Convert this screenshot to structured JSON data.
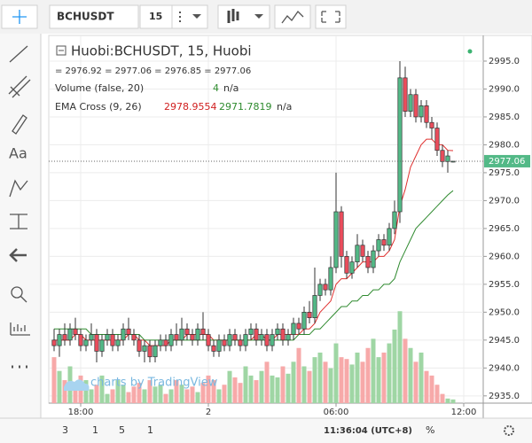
{
  "toolbar": {
    "symbol": "BCHUSDT",
    "interval": "15"
  },
  "left_toolbar": {
    "text_tool": "Aa"
  },
  "legend": {
    "title": "Huobi:BCHUSDT, 15, Huobi",
    "ohlc": "= 2976.92 = 2977.06 = 2976.85 = 2977.06",
    "volume_name": "Volume (false, 20)",
    "volume_na": "n/a",
    "ema_name": "EMA Cross (9, 26)",
    "ema_na": "n/a"
  },
  "watermark": "charts by TradingView",
  "bottom_bar": {
    "ranges": [
      "3",
      "1",
      "5",
      "1"
    ],
    "clock": "11:36:04 (UTC+8)",
    "percent": "%"
  },
  "chart_data": {
    "type": "candlestick",
    "current_price": {
      "value": 2977.06,
      "label": "2977.06"
    },
    "ylim": [
      2933.7,
      2999.6
    ],
    "yticks": [
      {
        "value": 2935,
        "label": "2935.0"
      },
      {
        "value": 2940,
        "label": "2940.0"
      },
      {
        "value": 2945,
        "label": "2945.0"
      },
      {
        "value": 2950,
        "label": "2950.0"
      },
      {
        "value": 2955,
        "label": "2955.0"
      },
      {
        "value": 2960,
        "label": "2960.0"
      },
      {
        "value": 2965,
        "label": "2965.0"
      },
      {
        "value": 2970,
        "label": "2970.0"
      },
      {
        "value": 2975,
        "label": "2975.0"
      },
      {
        "value": 2980,
        "label": "2980.0"
      },
      {
        "value": 2985,
        "label": "2985.0"
      },
      {
        "value": 2990,
        "label": "2990.0"
      },
      {
        "value": 2995,
        "label": "2995.0"
      }
    ],
    "xticks": [
      {
        "value": 5,
        "label": "18:00"
      },
      {
        "value": 29,
        "label": "2"
      },
      {
        "value": 53,
        "label": "06:00"
      },
      {
        "value": 77,
        "label": "12:00"
      }
    ],
    "grid": true,
    "up_color": "#53b987",
    "down_color": "#eb4d5c",
    "open": [
      2945,
      2944,
      2946,
      2945,
      2947,
      2946,
      2944,
      2945,
      2946,
      2943,
      2945,
      2946,
      2944,
      2945,
      2947,
      2946,
      2945,
      2943,
      2944,
      2942,
      2944,
      2945,
      2944,
      2946,
      2945,
      2947,
      2946,
      2945,
      2947,
      2946,
      2944,
      2943,
      2945,
      2944,
      2946,
      2945,
      2944,
      2946,
      2947,
      2945,
      2946,
      2944,
      2946,
      2947,
      2945,
      2946,
      2948,
      2947,
      2950,
      2949,
      2953,
      2955,
      2954,
      2958,
      2968,
      2960,
      2957,
      2959,
      2962,
      2960,
      2958,
      2961,
      2963,
      2962,
      2965,
      2968,
      2992,
      2986,
      2989,
      2985,
      2987,
      2984,
      2983,
      2979,
      2977,
      2976.92
    ],
    "high": [
      2947,
      2947,
      2948,
      2948,
      2949,
      2947,
      2946,
      2948,
      2947,
      2946,
      2947,
      2947,
      2946,
      2948,
      2949,
      2947,
      2946,
      2945,
      2945,
      2945,
      2946,
      2946,
      2947,
      2948,
      2949,
      2948,
      2947,
      2948,
      2950,
      2947,
      2945,
      2946,
      2946,
      2947,
      2947,
      2946,
      2947,
      2948,
      2948,
      2947,
      2947,
      2947,
      2948,
      2948,
      2947,
      2949,
      2949,
      2951,
      2952,
      2958,
      2956,
      2956,
      2960,
      2975,
      2969,
      2961,
      2960,
      2964,
      2963,
      2961,
      2962,
      2964,
      2964,
      2966,
      2970,
      2995,
      2994,
      2990,
      2990,
      2988,
      2988,
      2985,
      2984,
      2980,
      2979,
      2977.06
    ],
    "low": [
      2943,
      2942,
      2944,
      2944,
      2945,
      2943,
      2943,
      2944,
      2941,
      2942,
      2944,
      2943,
      2943,
      2944,
      2945,
      2944,
      2942,
      2941,
      2941,
      2941,
      2943,
      2943,
      2943,
      2944,
      2944,
      2945,
      2944,
      2944,
      2945,
      2943,
      2942,
      2942,
      2943,
      2943,
      2944,
      2943,
      2943,
      2945,
      2944,
      2944,
      2943,
      2943,
      2945,
      2944,
      2944,
      2945,
      2946,
      2946,
      2948,
      2948,
      2952,
      2953,
      2953,
      2957,
      2958,
      2956,
      2956,
      2958,
      2959,
      2957,
      2957,
      2960,
      2961,
      2961,
      2964,
      2966,
      2985,
      2985,
      2984,
      2984,
      2983,
      2981,
      2978,
      2976,
      2975,
      2976.85
    ],
    "close": [
      2944,
      2946,
      2945,
      2947,
      2946,
      2944,
      2945,
      2946,
      2943,
      2945,
      2946,
      2944,
      2945,
      2947,
      2946,
      2945,
      2943,
      2944,
      2942,
      2944,
      2945,
      2944,
      2946,
      2945,
      2947,
      2946,
      2945,
      2947,
      2946,
      2944,
      2943,
      2945,
      2944,
      2946,
      2945,
      2944,
      2946,
      2947,
      2945,
      2946,
      2944,
      2946,
      2947,
      2945,
      2946,
      2948,
      2947,
      2950,
      2949,
      2953,
      2955,
      2954,
      2958,
      2968,
      2960,
      2957,
      2959,
      2962,
      2960,
      2958,
      2961,
      2963,
      2962,
      2965,
      2968,
      2992,
      2986,
      2989,
      2985,
      2987,
      2984,
      2983,
      2979,
      2977,
      2978,
      2977.06
    ],
    "volume": {
      "vlim": [
        0,
        400
      ],
      "up_color": "#9fd6a4",
      "down_color": "#f7a9a9",
      "values": [
        50,
        35,
        25,
        40,
        20,
        30,
        25,
        15,
        20,
        30,
        10,
        15,
        25,
        20,
        12,
        18,
        22,
        15,
        25,
        18,
        20,
        10,
        15,
        25,
        20,
        15,
        18,
        12,
        22,
        30,
        25,
        15,
        20,
        35,
        28,
        22,
        40,
        30,
        25,
        35,
        45,
        30,
        28,
        40,
        32,
        45,
        60,
        40,
        35,
        50,
        55,
        45,
        38,
        65,
        50,
        48,
        42,
        55,
        45,
        60,
        70,
        50,
        55,
        65,
        80,
        100,
        70,
        60,
        45,
        55,
        35,
        30,
        20,
        10,
        5,
        4
      ]
    },
    "series": [
      {
        "name": "EMA 9",
        "color": "#e0302f",
        "values": [
          2945,
          2945,
          2945,
          2945,
          2946,
          2946,
          2945,
          2945,
          2945,
          2945,
          2945,
          2945,
          2945,
          2945,
          2946,
          2946,
          2945,
          2945,
          2944,
          2944,
          2944,
          2944,
          2945,
          2945,
          2945,
          2946,
          2946,
          2946,
          2946,
          2946,
          2945,
          2945,
          2945,
          2945,
          2945,
          2945,
          2945,
          2945,
          2946,
          2946,
          2945,
          2945,
          2946,
          2946,
          2946,
          2946,
          2946,
          2947,
          2947,
          2948,
          2950,
          2951,
          2952,
          2955,
          2956,
          2956,
          2957,
          2958,
          2959,
          2959,
          2959,
          2960,
          2960,
          2961,
          2963,
          2969,
          2972,
          2976,
          2978,
          2980,
          2981,
          2981,
          2980,
          2980,
          2979,
          2978.9554
        ]
      },
      {
        "name": "EMA 26",
        "color": "#2f8a2f",
        "values": [
          2947,
          2947,
          2947,
          2947,
          2947,
          2947,
          2947,
          2946,
          2946,
          2946,
          2946,
          2946,
          2946,
          2946,
          2946,
          2946,
          2946,
          2945,
          2945,
          2945,
          2945,
          2945,
          2945,
          2945,
          2945,
          2945,
          2945,
          2945,
          2945,
          2945,
          2945,
          2945,
          2945,
          2945,
          2945,
          2945,
          2945,
          2945,
          2945,
          2945,
          2945,
          2945,
          2945,
          2945,
          2945,
          2945,
          2946,
          2946,
          2946,
          2947,
          2947,
          2948,
          2949,
          2950,
          2951,
          2951,
          2952,
          2952,
          2953,
          2953,
          2954,
          2954,
          2955,
          2955,
          2956,
          2959,
          2961,
          2963,
          2965,
          2966,
          2967,
          2968,
          2969,
          2970,
          2971,
          2971.7819
        ]
      }
    ]
  }
}
